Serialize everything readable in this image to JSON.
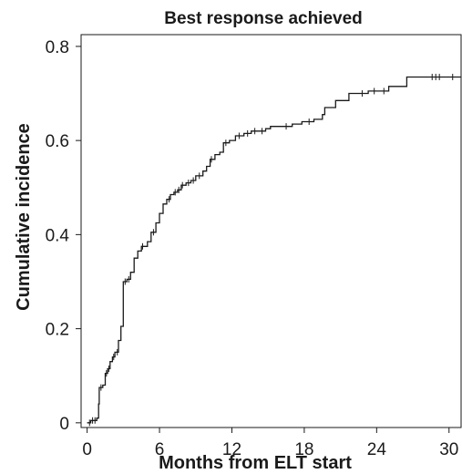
{
  "chart_data": {
    "type": "line",
    "title": "Best response achieved",
    "xlabel": "Months from ELT start",
    "ylabel": "Cumulative incidence",
    "xlim": [
      -0.5,
      31
    ],
    "ylim": [
      -0.01,
      0.825
    ],
    "x_ticks": [
      0,
      6,
      12,
      18,
      24,
      30
    ],
    "x_tick_labels": [
      "0",
      "6",
      "12",
      "18",
      "24",
      "30"
    ],
    "y_ticks": [
      0,
      0.2,
      0.4,
      0.6,
      0.8
    ],
    "y_tick_labels": [
      "0",
      "0.2",
      "0.4",
      "0.6",
      "0.8"
    ],
    "step": "post",
    "grid": false,
    "legend": "none",
    "series": [
      {
        "step_points": [
          [
            0,
            0
          ],
          [
            0.3,
            0.005
          ],
          [
            0.8,
            0.01
          ],
          [
            0.95,
            0.04
          ],
          [
            1.0,
            0.075
          ],
          [
            1.3,
            0.08
          ],
          [
            1.5,
            0.105
          ],
          [
            1.7,
            0.115
          ],
          [
            1.9,
            0.13
          ],
          [
            2.1,
            0.14
          ],
          [
            2.3,
            0.15
          ],
          [
            2.6,
            0.175
          ],
          [
            2.8,
            0.205
          ],
          [
            3.0,
            0.3
          ],
          [
            3.3,
            0.305
          ],
          [
            3.6,
            0.32
          ],
          [
            3.9,
            0.35
          ],
          [
            4.2,
            0.365
          ],
          [
            4.5,
            0.375
          ],
          [
            5.0,
            0.385
          ],
          [
            5.3,
            0.405
          ],
          [
            5.7,
            0.425
          ],
          [
            6.0,
            0.445
          ],
          [
            6.3,
            0.465
          ],
          [
            6.6,
            0.475
          ],
          [
            6.9,
            0.485
          ],
          [
            7.2,
            0.49
          ],
          [
            7.5,
            0.495
          ],
          [
            7.8,
            0.505
          ],
          [
            8.2,
            0.51
          ],
          [
            8.6,
            0.515
          ],
          [
            9.0,
            0.525
          ],
          [
            9.6,
            0.535
          ],
          [
            9.9,
            0.545
          ],
          [
            10.2,
            0.56
          ],
          [
            10.6,
            0.57
          ],
          [
            11.0,
            0.575
          ],
          [
            11.3,
            0.595
          ],
          [
            11.8,
            0.6
          ],
          [
            12.3,
            0.61
          ],
          [
            13.0,
            0.615
          ],
          [
            13.6,
            0.62
          ],
          [
            14.8,
            0.625
          ],
          [
            15.2,
            0.63
          ],
          [
            17.0,
            0.635
          ],
          [
            17.8,
            0.64
          ],
          [
            18.8,
            0.645
          ],
          [
            19.5,
            0.655
          ],
          [
            19.7,
            0.67
          ],
          [
            20.6,
            0.685
          ],
          [
            21.7,
            0.7
          ],
          [
            23.3,
            0.705
          ],
          [
            25.0,
            0.715
          ],
          [
            26.5,
            0.735
          ],
          [
            31.0,
            0.735
          ]
        ],
        "censor_x": [
          0.2,
          0.45,
          0.65,
          1.15,
          1.6,
          1.8,
          2.2,
          2.5,
          3.15,
          3.45,
          4.6,
          5.5,
          6.8,
          7.3,
          7.6,
          7.9,
          8.4,
          8.8,
          9.3,
          10.3,
          11.5,
          12.6,
          13.3,
          13.9,
          14.5,
          16.5,
          18.4,
          22.8,
          23.8,
          24.6,
          28.6,
          28.9,
          29.2,
          30.3
        ]
      }
    ]
  }
}
